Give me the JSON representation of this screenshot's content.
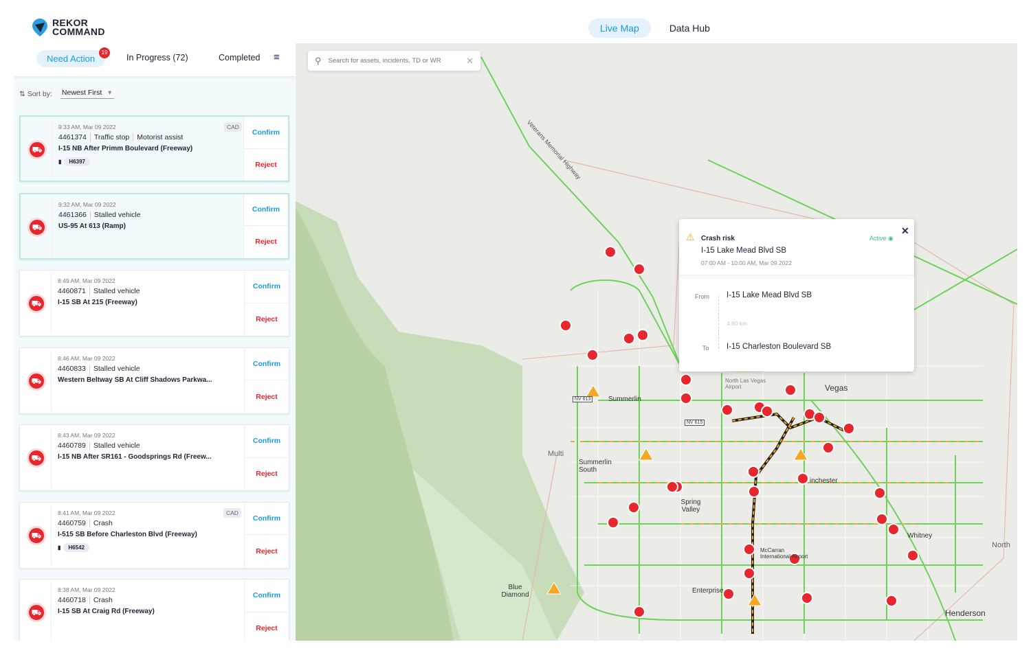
{
  "brand": {
    "line1": "REKOR",
    "line2": "COMMAND"
  },
  "nav": {
    "live_map": "Live Map",
    "data_hub": "Data Hub"
  },
  "tabs": {
    "need_action": "Need Action",
    "need_action_count": "19",
    "in_progress": "In Progress (72)",
    "completed": "Completed"
  },
  "sort": {
    "label": "Sort by:",
    "value": "Newest First"
  },
  "cards": [
    {
      "time": "9:33 AM, Mar 09 2022",
      "id": "4461374",
      "type": "Traffic stop",
      "subtype": "Motorist assist",
      "location": "I-15 NB After Primm Boulevard (Freeway)",
      "unit": "H6397",
      "tag": "CAD",
      "confirm": "Confirm",
      "reject": "Reject"
    },
    {
      "time": "9:32 AM, Mar 09 2022",
      "id": "4461366",
      "type": "Stalled vehicle",
      "location": "US-95  At 613 (Ramp)",
      "confirm": "Confirm",
      "reject": "Reject"
    },
    {
      "time": "8:49 AM, Mar 09 2022",
      "id": "4460871",
      "type": "Stalled vehicle",
      "location": "I-15 SB At 215 (Freeway)",
      "confirm": "Confirm",
      "reject": "Reject"
    },
    {
      "time": "8:46 AM, Mar 09 2022",
      "id": "4460833",
      "type": "Stalled vehicle",
      "location": "Western Beltway SB At Cliff Shadows Parkwa...",
      "confirm": "Confirm",
      "reject": "Reject"
    },
    {
      "time": "8:43 AM, Mar 09 2022",
      "id": "4460789",
      "type": "Stalled vehicle",
      "location": "I-15 NB After SR161 - Goodsprings Rd (Freew...",
      "confirm": "Confirm",
      "reject": "Reject"
    },
    {
      "time": "8:41 AM, Mar 09 2022",
      "id": "4460759",
      "type": "Crash",
      "location": "I-515 SB Before Charleston Blvd (Freeway)",
      "unit": "H6542",
      "tag": "CAD",
      "confirm": "Confirm",
      "reject": "Reject"
    },
    {
      "time": "8:38 AM, Mar 09 2022",
      "id": "4460718",
      "type": "Crash",
      "location": "I-15 SB At Craig Rd (Freeway)",
      "confirm": "Confirm",
      "reject": "Reject"
    }
  ],
  "search": {
    "placeholder": "Search for assets, incidents, TD or WR"
  },
  "map_labels": {
    "veterans": "Veterans Memorial Highway",
    "summerlin": "Summerlin",
    "vegas": "Vegas",
    "nlv_airport": "North Las Vegas Airport",
    "multi": "Multi",
    "summerlin_south": "Summerlin South",
    "spring_valley": "Spring Valley",
    "enterprise": "Enterprise",
    "blue_diamond": "Blue Diamond",
    "henderson": "Henderson",
    "whitney": "Whitney",
    "mccarran": "McCarran International Airport",
    "north": "North",
    "winchester": "inchester",
    "nv613": "NV 613",
    "nv615": "NV 615"
  },
  "popup": {
    "type": "Crash risk",
    "title": "I-15 Lake Mead Blvd SB",
    "time": "07:00 AM - 10:00 AM, Mar 09 2022",
    "status": "Active",
    "from_label": "From",
    "from": "I-15 Lake Mead Blvd SB",
    "distance": "4.80 km",
    "to_label": "To",
    "to": "I-15 Charleston Boulevard SB"
  },
  "colors": {
    "accent": "#1a9be0",
    "danger": "#e8262e",
    "active": "#3cc08c",
    "warning": "#f5a623"
  }
}
